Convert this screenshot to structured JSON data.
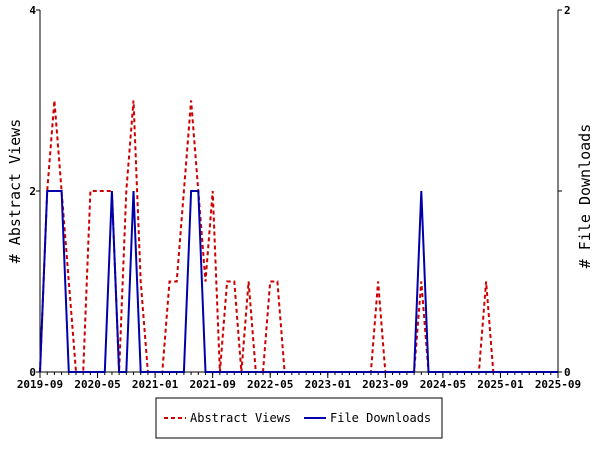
{
  "chart_data": {
    "type": "line",
    "title": "",
    "xlabel": "",
    "ylabel_left": "# Abstract Views",
    "ylabel_right": "# File Downloads",
    "x_ticks": [
      "2019-09",
      "2020-05",
      "2021-01",
      "2021-09",
      "2022-05",
      "2023-01",
      "2023-09",
      "2024-05",
      "2025-01",
      "2025-09"
    ],
    "x_range_months": [
      "2019-09",
      "2025-09"
    ],
    "ylim_left": [
      0,
      4
    ],
    "ylim_right": [
      0,
      2
    ],
    "yticks_left": [
      "0",
      "2",
      "4"
    ],
    "yticks_right": [
      "0",
      "1",
      "2"
    ],
    "legend_placement": "bottom-center",
    "series": [
      {
        "name": "Abstract Views",
        "axis": "left",
        "color": "#cc0000",
        "style": "dashed",
        "points": [
          [
            "2019-09",
            0
          ],
          [
            "2019-10",
            2
          ],
          [
            "2019-11",
            3
          ],
          [
            "2019-12",
            2
          ],
          [
            "2020-01",
            1
          ],
          [
            "2020-02",
            0
          ],
          [
            "2020-03",
            0
          ],
          [
            "2020-04",
            2
          ],
          [
            "2020-05",
            2
          ],
          [
            "2020-06",
            2
          ],
          [
            "2020-07",
            2
          ],
          [
            "2020-08",
            0
          ],
          [
            "2020-09",
            2
          ],
          [
            "2020-10",
            3
          ],
          [
            "2020-11",
            1
          ],
          [
            "2020-12",
            0
          ],
          [
            "2021-01",
            0
          ],
          [
            "2021-02",
            0
          ],
          [
            "2021-03",
            1
          ],
          [
            "2021-04",
            1
          ],
          [
            "2021-05",
            2
          ],
          [
            "2021-06",
            3
          ],
          [
            "2021-07",
            2
          ],
          [
            "2021-08",
            1
          ],
          [
            "2021-09",
            2
          ],
          [
            "2021-10",
            0
          ],
          [
            "2021-11",
            1
          ],
          [
            "2021-12",
            1
          ],
          [
            "2022-01",
            0
          ],
          [
            "2022-02",
            1
          ],
          [
            "2022-03",
            0
          ],
          [
            "2022-04",
            0
          ],
          [
            "2022-05",
            1
          ],
          [
            "2022-06",
            1
          ],
          [
            "2022-07",
            0
          ],
          [
            "2022-08",
            0
          ],
          [
            "2022-09",
            0
          ],
          [
            "2022-10",
            0
          ],
          [
            "2022-11",
            0
          ],
          [
            "2022-12",
            0
          ],
          [
            "2023-01",
            0
          ],
          [
            "2023-02",
            0
          ],
          [
            "2023-03",
            0
          ],
          [
            "2023-04",
            0
          ],
          [
            "2023-05",
            0
          ],
          [
            "2023-06",
            0
          ],
          [
            "2023-07",
            0
          ],
          [
            "2023-08",
            1
          ],
          [
            "2023-09",
            0
          ],
          [
            "2023-10",
            0
          ],
          [
            "2023-11",
            0
          ],
          [
            "2023-12",
            0
          ],
          [
            "2024-01",
            0
          ],
          [
            "2024-02",
            1
          ],
          [
            "2024-03",
            0
          ],
          [
            "2024-04",
            0
          ],
          [
            "2024-05",
            0
          ],
          [
            "2024-06",
            0
          ],
          [
            "2024-07",
            0
          ],
          [
            "2024-08",
            0
          ],
          [
            "2024-09",
            0
          ],
          [
            "2024-10",
            0
          ],
          [
            "2024-11",
            1
          ],
          [
            "2024-12",
            0
          ],
          [
            "2025-01",
            0
          ],
          [
            "2025-02",
            0
          ],
          [
            "2025-03",
            0
          ],
          [
            "2025-04",
            0
          ],
          [
            "2025-05",
            0
          ],
          [
            "2025-06",
            0
          ],
          [
            "2025-07",
            0
          ],
          [
            "2025-08",
            0
          ],
          [
            "2025-09",
            0
          ]
        ]
      },
      {
        "name": "File Downloads",
        "axis": "right",
        "color": "#0000aa",
        "style": "solid",
        "points": [
          [
            "2019-09",
            0
          ],
          [
            "2019-10",
            1
          ],
          [
            "2019-11",
            1
          ],
          [
            "2019-12",
            1
          ],
          [
            "2020-01",
            0
          ],
          [
            "2020-02",
            0
          ],
          [
            "2020-03",
            0
          ],
          [
            "2020-04",
            0
          ],
          [
            "2020-05",
            0
          ],
          [
            "2020-06",
            0
          ],
          [
            "2020-07",
            1
          ],
          [
            "2020-08",
            0
          ],
          [
            "2020-09",
            0
          ],
          [
            "2020-10",
            1
          ],
          [
            "2020-11",
            0
          ],
          [
            "2020-12",
            0
          ],
          [
            "2021-01",
            0
          ],
          [
            "2021-02",
            0
          ],
          [
            "2021-03",
            0
          ],
          [
            "2021-04",
            0
          ],
          [
            "2021-05",
            0
          ],
          [
            "2021-06",
            1
          ],
          [
            "2021-07",
            1
          ],
          [
            "2021-08",
            0
          ],
          [
            "2021-09",
            0
          ],
          [
            "2021-10",
            0
          ],
          [
            "2021-11",
            0
          ],
          [
            "2021-12",
            0
          ],
          [
            "2022-01",
            0
          ],
          [
            "2022-02",
            0
          ],
          [
            "2022-03",
            0
          ],
          [
            "2022-04",
            0
          ],
          [
            "2022-05",
            0
          ],
          [
            "2022-06",
            0
          ],
          [
            "2022-07",
            0
          ],
          [
            "2022-08",
            0
          ],
          [
            "2022-09",
            0
          ],
          [
            "2022-10",
            0
          ],
          [
            "2022-11",
            0
          ],
          [
            "2022-12",
            0
          ],
          [
            "2023-01",
            0
          ],
          [
            "2023-02",
            0
          ],
          [
            "2023-03",
            0
          ],
          [
            "2023-04",
            0
          ],
          [
            "2023-05",
            0
          ],
          [
            "2023-06",
            0
          ],
          [
            "2023-07",
            0
          ],
          [
            "2023-08",
            0
          ],
          [
            "2023-09",
            0
          ],
          [
            "2023-10",
            0
          ],
          [
            "2023-11",
            0
          ],
          [
            "2023-12",
            0
          ],
          [
            "2024-01",
            0
          ],
          [
            "2024-02",
            1
          ],
          [
            "2024-03",
            0
          ],
          [
            "2024-04",
            0
          ],
          [
            "2024-05",
            0
          ],
          [
            "2024-06",
            0
          ],
          [
            "2024-07",
            0
          ],
          [
            "2024-08",
            0
          ],
          [
            "2024-09",
            0
          ],
          [
            "2024-10",
            0
          ],
          [
            "2024-11",
            0
          ],
          [
            "2024-12",
            0
          ],
          [
            "2025-01",
            0
          ],
          [
            "2025-02",
            0
          ],
          [
            "2025-03",
            0
          ],
          [
            "2025-04",
            0
          ],
          [
            "2025-05",
            0
          ],
          [
            "2025-06",
            0
          ],
          [
            "2025-07",
            0
          ],
          [
            "2025-08",
            0
          ],
          [
            "2025-09",
            0
          ]
        ]
      }
    ],
    "legend": [
      {
        "label": "Abstract Views",
        "color": "#cc0000",
        "style": "dashed"
      },
      {
        "label": "File Downloads",
        "color": "#0000aa",
        "style": "solid"
      }
    ]
  }
}
